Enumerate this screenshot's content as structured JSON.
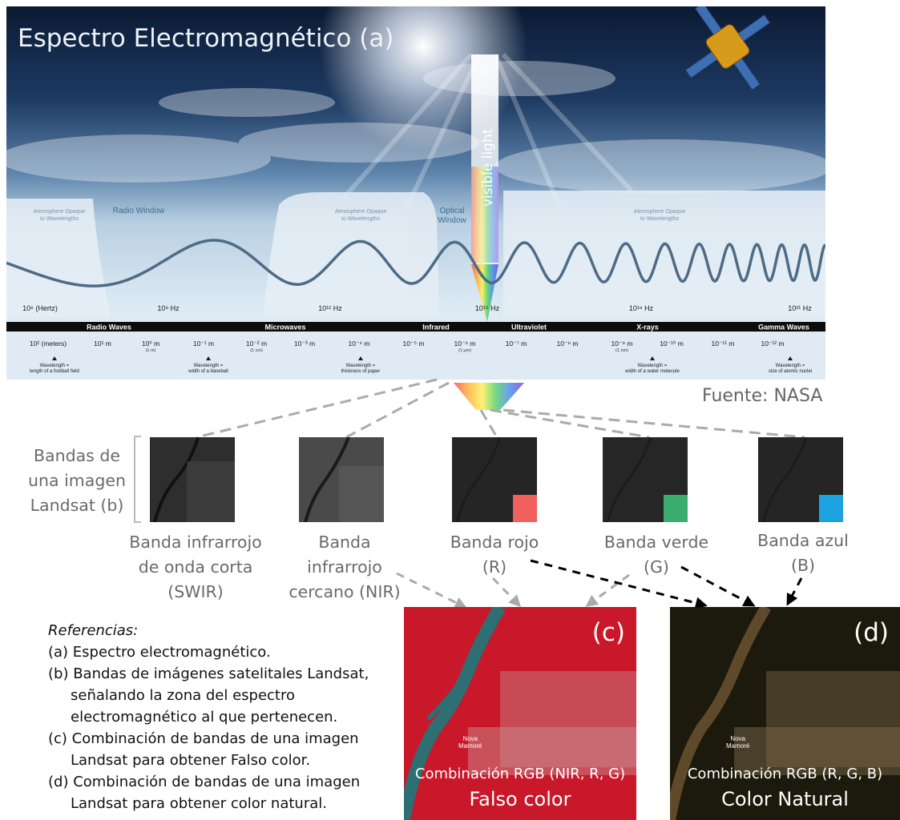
{
  "spectrum": {
    "title": "Espectro Electromagnético (a)",
    "visible_light": "visible light",
    "windows": {
      "opaque_left": "Atmosphere Opaque\nto Wavelengths",
      "radio": "Radio Window",
      "opaque_mid": "Atmosphere Opaque\nto Wavelengths",
      "optical": "Optical\nWindow",
      "opaque_right": "Atmosphere Opaque\nto Wavelengths"
    },
    "frequencies": [
      "10⁶ (Hertz)",
      "10⁹ Hz",
      "10¹² Hz",
      "10¹⁵ Hz",
      "10¹⁸ Hz",
      "10²¹ Hz"
    ],
    "bands": [
      "Radio Waves",
      "Microwaves",
      "Infrared",
      "Ultraviolet",
      "X-rays",
      "Gamma Waves"
    ],
    "wavelengths": [
      {
        "label": "10² (meters)",
        "sub": ""
      },
      {
        "label": "10¹ m",
        "sub": ""
      },
      {
        "label": "10⁰ m",
        "sub": "(1 m)"
      },
      {
        "label": "10⁻¹ m",
        "sub": ""
      },
      {
        "label": "10⁻² m",
        "sub": "(1 cm)"
      },
      {
        "label": "10⁻³ m",
        "sub": ""
      },
      {
        "label": "10⁻⁴ m",
        "sub": ""
      },
      {
        "label": "10⁻⁵ m",
        "sub": ""
      },
      {
        "label": "10⁻⁶ m",
        "sub": "(1 µm)"
      },
      {
        "label": "10⁻⁷ m",
        "sub": ""
      },
      {
        "label": "10⁻⁸ m",
        "sub": ""
      },
      {
        "label": "10⁻⁹ m",
        "sub": "(1 nm)"
      },
      {
        "label": "10⁻¹⁰ m",
        "sub": ""
      },
      {
        "label": "10⁻¹¹ m",
        "sub": ""
      },
      {
        "label": "10⁻¹² m",
        "sub": ""
      }
    ],
    "comparisons": [
      "Wavelength =\nlength of a football field",
      "Wavelength =\nwidth of a baseball",
      "Wavelength =\nthickness of paper",
      "Wavelength =\nwidth of a water molecule",
      "Wavelength =\nsize of atomic nuclei"
    ]
  },
  "source": "Fuente: NASA",
  "group_label": "Bandas de una imagen Landsat (b)",
  "band_tiles": [
    {
      "label": "Banda infrarrojo de onda corta (SWIR)",
      "swatch": ""
    },
    {
      "label": "Banda infrarrojo cercano (NIR)",
      "swatch": ""
    },
    {
      "label": "Banda rojo (R)",
      "swatch": "#f0605d"
    },
    {
      "label": "Banda verde (G)",
      "swatch": "#3aad6e"
    },
    {
      "label": "Banda azul (B)",
      "swatch": "#1ba3e0"
    }
  ],
  "references": {
    "title": "Referencias:",
    "items": [
      "(a) Espectro electromagnético.",
      "(b) Bandas de imágenes satelitales Landsat, señalando la zona del espectro electromagnético al que pertenecen.",
      "(c) Combinación de bandas de una imagen Landsat para obtener Falso color.",
      "(d) Combinación de bandas de una imagen Landsat para obtener color natural."
    ]
  },
  "composites": [
    {
      "letter": "(c)",
      "caption": "Combinación RGB (NIR, R, G)",
      "name": "Falso color",
      "town": "Nova\nMamoré"
    },
    {
      "letter": "(d)",
      "caption": "Combinación RGB (R, G, B)",
      "name": "Color Natural",
      "town": "Nova\nMamoré"
    }
  ]
}
